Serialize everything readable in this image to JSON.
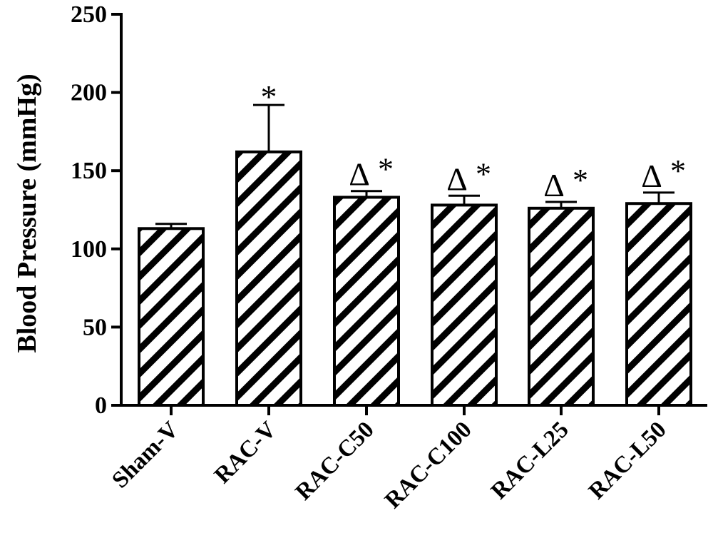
{
  "chart_data": {
    "type": "bar",
    "ylabel": "Blood Pressure (mmHg)",
    "xlabel": "",
    "ylim": [
      0,
      250
    ],
    "yticks": [
      0,
      50,
      100,
      150,
      200,
      250
    ],
    "ytick_labels": [
      "0",
      "50",
      "100",
      "150",
      "200",
      "250"
    ],
    "categories": [
      "Sham-V",
      "RAC-V",
      "RAC-C50",
      "RAC-C100",
      "RAC-L25",
      "RAC-L50"
    ],
    "values": [
      113,
      162,
      133,
      128,
      126,
      129
    ],
    "errors": [
      3,
      30,
      4,
      6,
      4,
      7
    ],
    "annotations": [
      "",
      "*",
      "Δ*",
      "Δ*",
      "Δ*",
      "Δ*"
    ],
    "bar_fill": "diagonal-hatch",
    "bar_color": "#000000",
    "grid": false,
    "legend": "none"
  }
}
